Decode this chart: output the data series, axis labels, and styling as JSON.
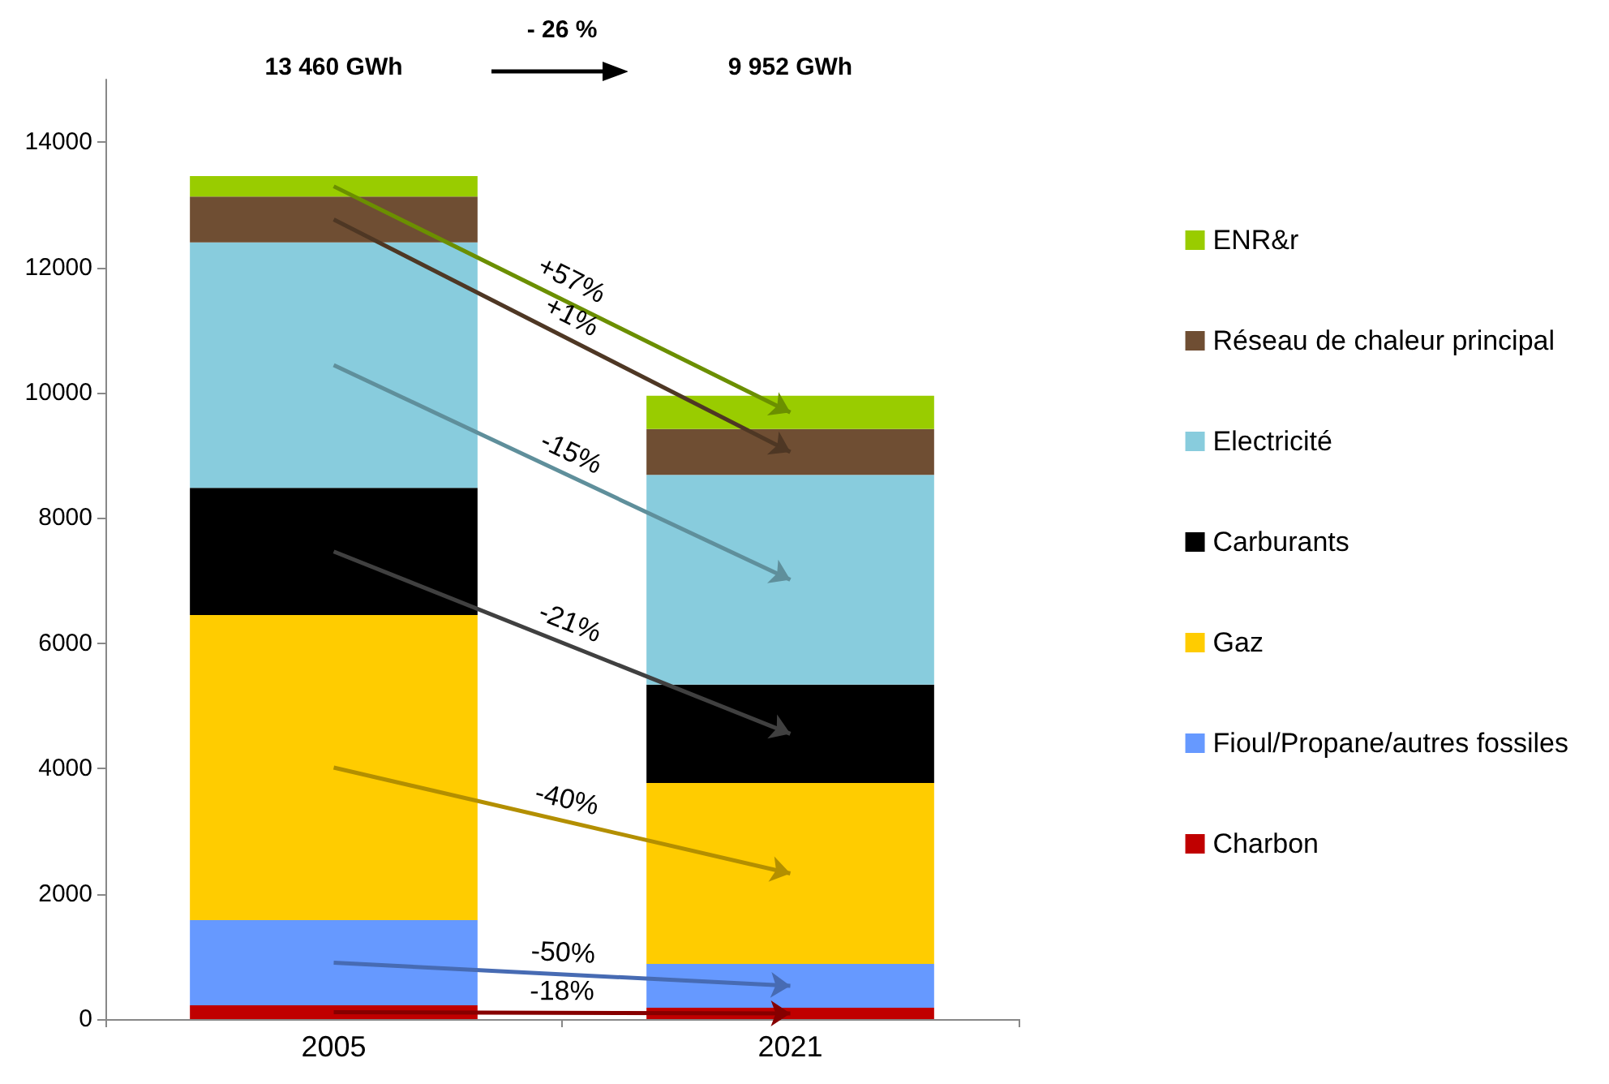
{
  "chart_data": {
    "type": "bar",
    "stacked": true,
    "categories": [
      "2005",
      "2021"
    ],
    "series": [
      {
        "name": "Charbon",
        "color": "#c00000",
        "values": [
          220,
          180
        ]
      },
      {
        "name": "Fioul/Propane/autres fossiles",
        "color": "#6699ff",
        "values": [
          1360,
          700
        ]
      },
      {
        "name": "Gaz",
        "color": "#ffcc00",
        "values": [
          4870,
          2890
        ]
      },
      {
        "name": "Carburants",
        "color": "#000000",
        "values": [
          2030,
          1570
        ]
      },
      {
        "name": "Electricité",
        "color": "#88ccdd",
        "values": [
          3920,
          3350
        ]
      },
      {
        "name": "Réseau de chaleur principal",
        "color": "#6f4e33",
        "values": [
          730,
          730
        ]
      },
      {
        "name": "ENR&r",
        "color": "#99cc00",
        "values": [
          330,
          530
        ]
      }
    ],
    "ylim": [
      0,
      15000
    ],
    "yticks": [
      0,
      2000,
      4000,
      6000,
      8000,
      10000,
      12000,
      14000
    ],
    "grid": false,
    "legend": "right",
    "annotations": [
      "-18%",
      "-50%",
      "-40%",
      "-21%",
      "-15%",
      "+1%",
      "+57%",
      "13 460 GWh",
      "9 952 GWh",
      "- 26 %"
    ]
  }
}
